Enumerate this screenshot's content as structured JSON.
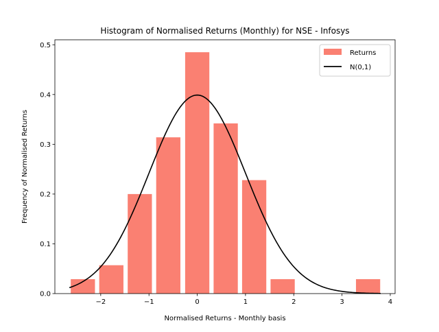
{
  "chart_data": {
    "type": "bar",
    "title": "Histogram of Normalised Returns (Monthly) for NSE - Infosys",
    "xlabel": "Normalised Returns - Monthly basis",
    "ylabel": "Frequency of Normalised Returns",
    "xlim": [
      -2.95,
      4.1
    ],
    "ylim": [
      0,
      0.51
    ],
    "xticks": [
      -2,
      -1,
      0,
      1,
      2,
      3,
      4
    ],
    "xtick_labels": [
      "−2",
      "−1",
      "0",
      "1",
      "2",
      "3",
      "4"
    ],
    "yticks": [
      0.0,
      0.1,
      0.2,
      0.3,
      0.4,
      0.5
    ],
    "ytick_labels": [
      "0.0",
      "0.1",
      "0.2",
      "0.3",
      "0.4",
      "0.5"
    ],
    "grid": false,
    "legend_position": "top-right",
    "series": [
      {
        "name": "Returns",
        "kind": "histogram",
        "color": "#fa8072",
        "bin_width": 0.59,
        "bin_centers": [
          -2.37,
          -1.78,
          -1.19,
          -0.6,
          0.0,
          0.59,
          1.18,
          1.77,
          3.54
        ],
        "values": [
          0.029,
          0.057,
          0.2,
          0.314,
          0.485,
          0.342,
          0.228,
          0.029,
          0.029
        ]
      },
      {
        "name": "N(0,1)",
        "kind": "line",
        "color": "#000000",
        "x_range": [
          -2.65,
          3.8
        ],
        "peak": 0.399
      }
    ]
  }
}
